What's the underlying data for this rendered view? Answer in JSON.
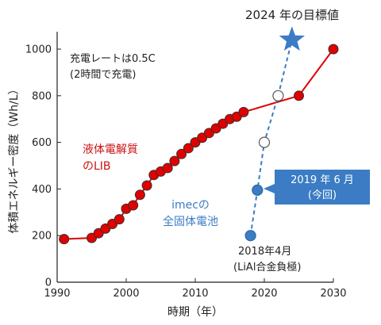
{
  "chart_data": {
    "type": "scatter",
    "title": "",
    "xlabel": "時期（年）",
    "ylabel": "体積エネルギー密度（Wh/L）",
    "xlim": [
      1990,
      2030
    ],
    "ylim": [
      0,
      1000
    ],
    "xticks": [
      "1990",
      "2000",
      "2010",
      "2020",
      "2030"
    ],
    "yticks": [
      "0",
      "200",
      "400",
      "600",
      "800",
      "1000"
    ],
    "grid": false,
    "series": [
      {
        "name": "液体電解質のLIB",
        "color": "#e10000",
        "marker": "circle-filled",
        "line": "solid",
        "x": [
          1991,
          1995,
          1996,
          1997,
          1998,
          1999,
          2000,
          2001,
          2002,
          2003,
          2004,
          2005,
          2006,
          2007,
          2008,
          2009,
          2010,
          2011,
          2012,
          2013,
          2014,
          2015,
          2016,
          2017,
          2025,
          2030
        ],
        "y": [
          185,
          190,
          210,
          230,
          250,
          270,
          315,
          330,
          375,
          415,
          460,
          475,
          490,
          520,
          550,
          575,
          600,
          620,
          640,
          660,
          680,
          700,
          710,
          730,
          800,
          1000
        ]
      },
      {
        "name": "imecの全固体電池",
        "color": "#3b7cc4",
        "marker": "circle",
        "line": "dashed",
        "x": [
          2018,
          2019,
          2020,
          2022
        ],
        "y": [
          200,
          395,
          600,
          800
        ],
        "filled": [
          true,
          true,
          false,
          false
        ]
      },
      {
        "name": "2024年の目標値",
        "color": "#3b7cc4",
        "marker": "star",
        "x": [
          2024
        ],
        "y": [
          1040
        ]
      }
    ],
    "annotations": {
      "condition_line1": "充電レートは0.5C",
      "condition_line2": "(2時間で充電)",
      "lib_label_line1": "液体電解質",
      "lib_label_line2": "のLIB",
      "imec_label_line1": "imecの",
      "imec_label_line2": "全固体電池",
      "target_label": "2024 年の目標値",
      "callout_2019_line1": "2019 年 6 月",
      "callout_2019_line2": "(今回)",
      "label_2018_line1": "2018年4月",
      "label_2018_line2": "(LiAl合金負極)"
    }
  }
}
